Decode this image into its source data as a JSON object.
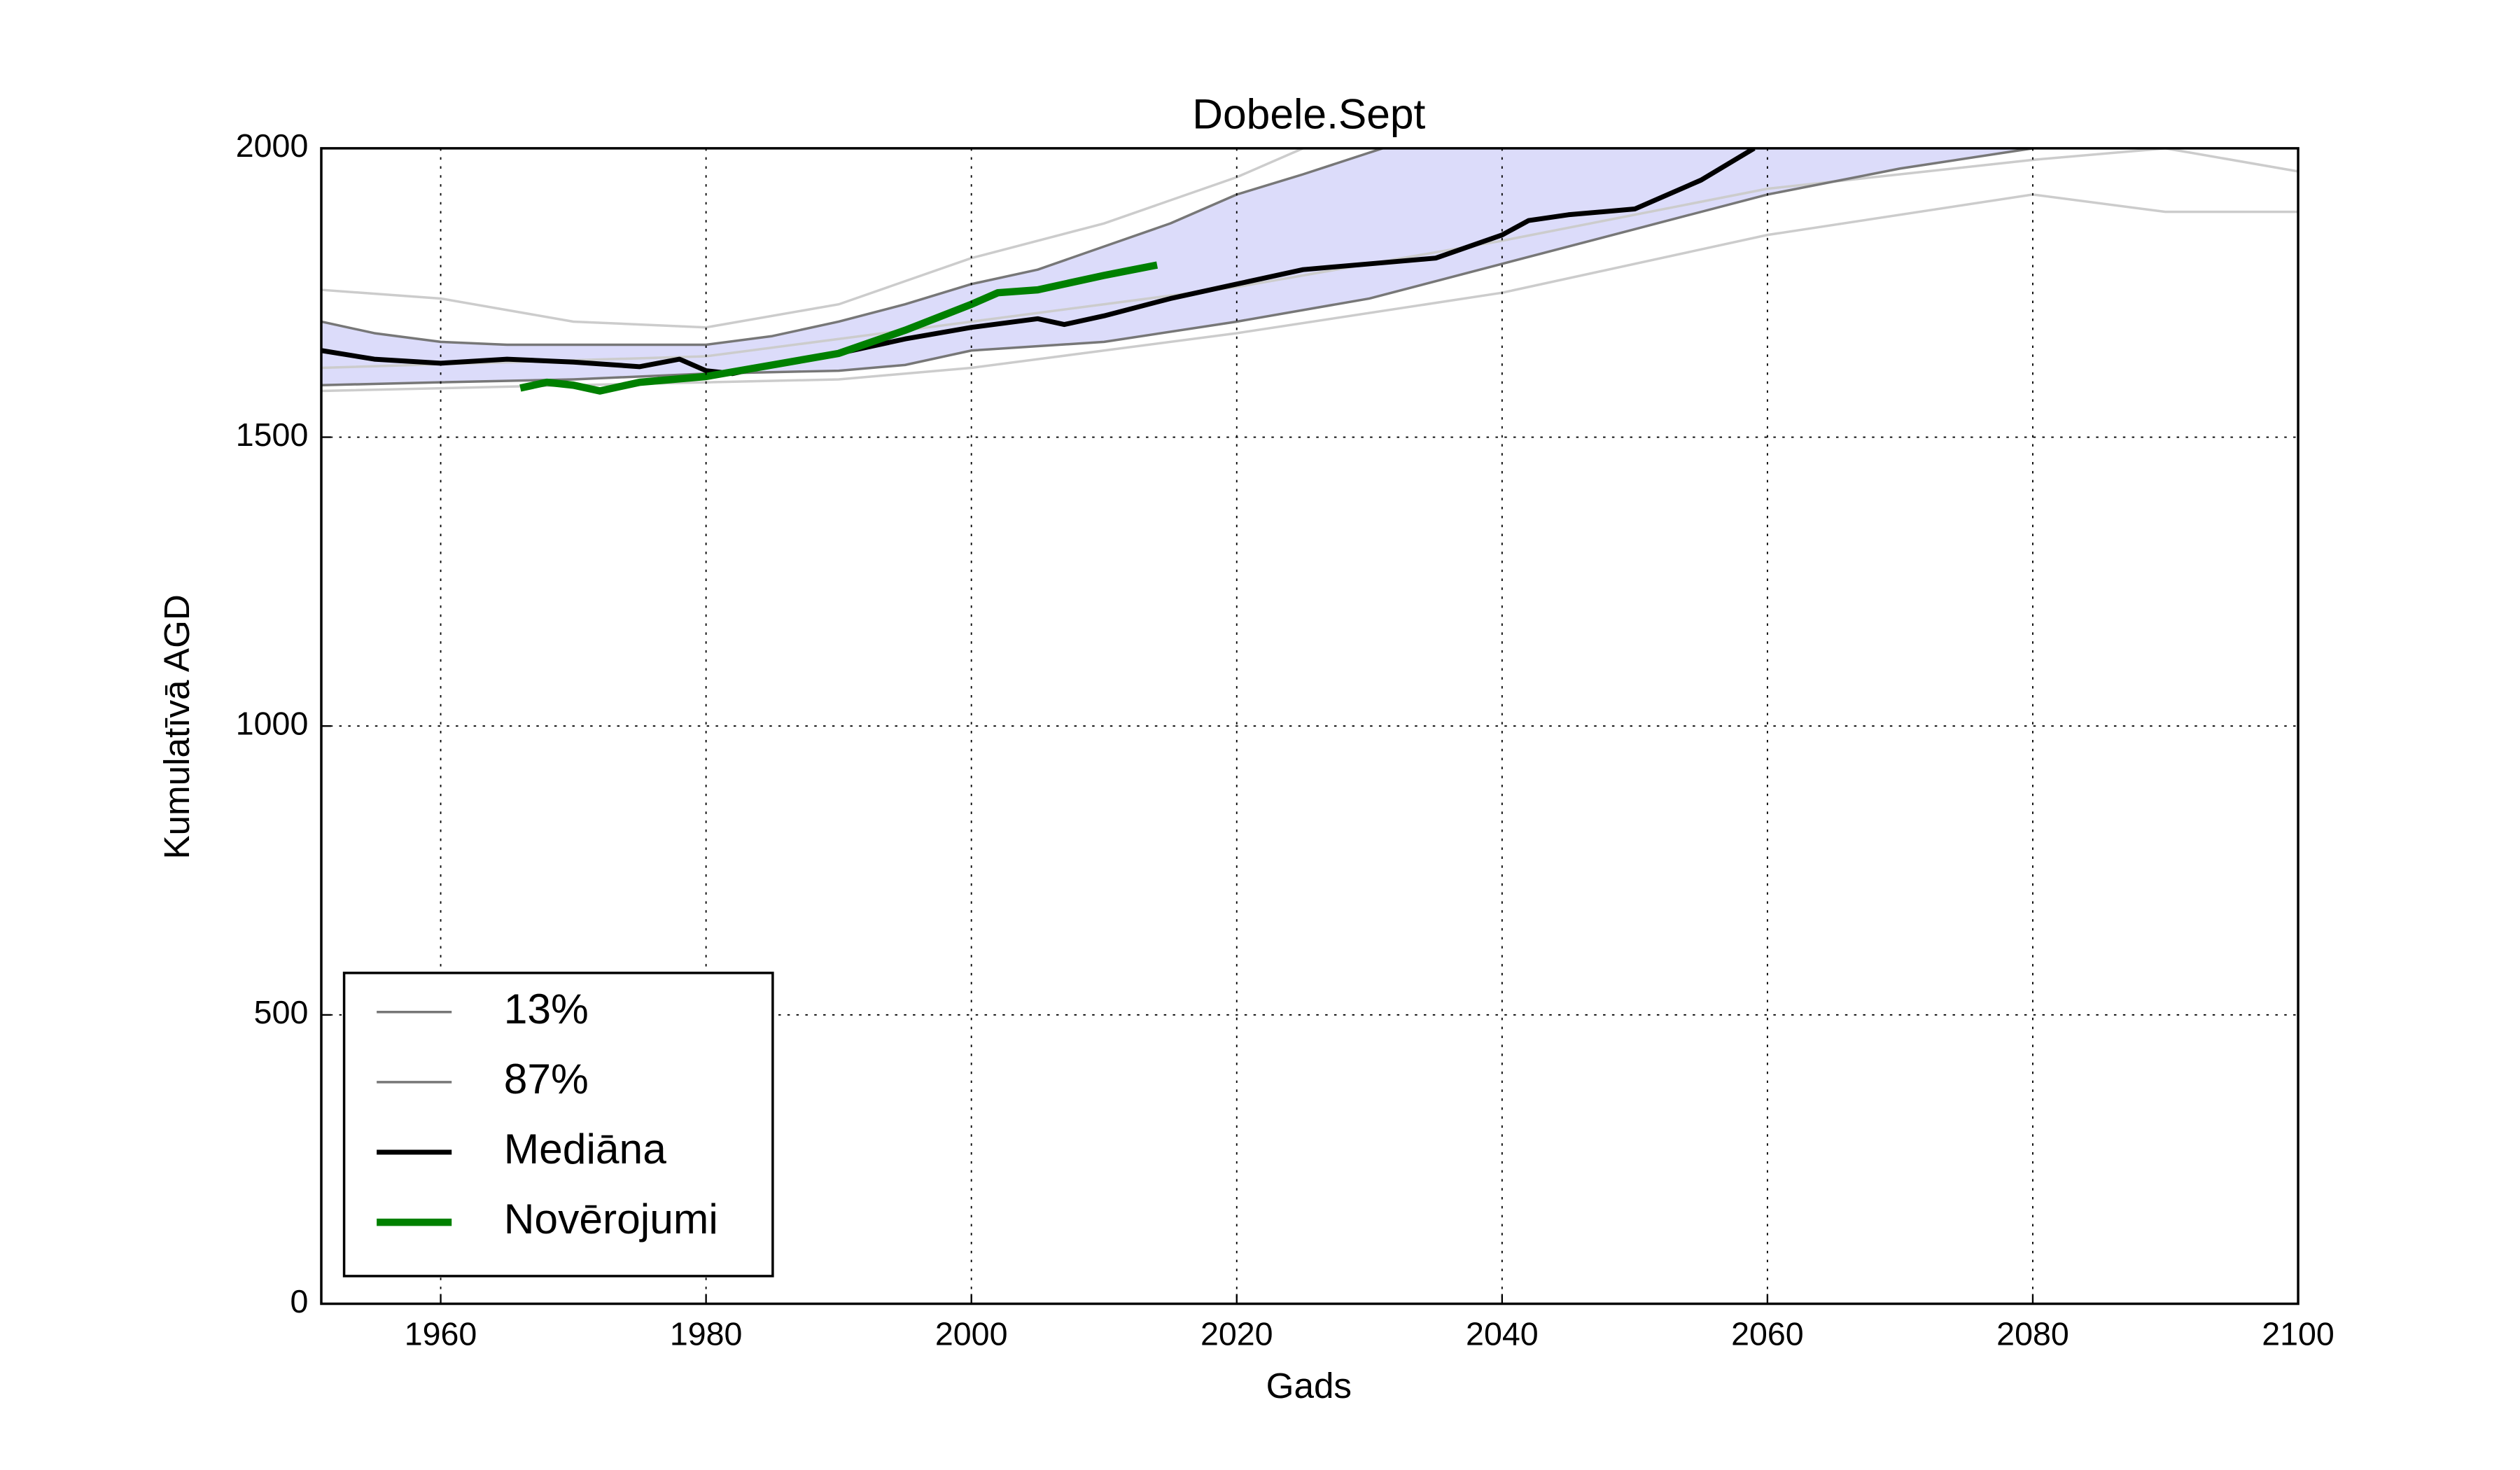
{
  "chart_data": {
    "type": "line",
    "title": "Dobele.Sept",
    "xlabel": "Gads",
    "ylabel": "Kumulatīvā AGD",
    "xlim": [
      1951,
      2100
    ],
    "ylim": [
      0,
      2000
    ],
    "xticks": [
      1960,
      1980,
      2000,
      2020,
      2040,
      2060,
      2080,
      2100
    ],
    "yticks": [
      0,
      500,
      1000,
      1500,
      2000
    ],
    "grid": true,
    "legend": "lower left",
    "band_color": "#d8d8fa",
    "members": [
      {
        "color": "#cccccc",
        "x": [
          1951,
          1960,
          1970,
          1980,
          1990,
          2000,
          2010,
          2020,
          2025
        ],
        "values": [
          1755,
          1740,
          1700,
          1690,
          1730,
          1810,
          1870,
          1950,
          2000
        ]
      },
      {
        "color": "#cccccc",
        "x": [
          1951,
          1970,
          1990,
          2000,
          2020,
          2040,
          2060,
          2080,
          2090,
          2100
        ],
        "values": [
          1580,
          1590,
          1600,
          1620,
          1680,
          1750,
          1850,
          1920,
          1890,
          1890
        ]
      },
      {
        "color": "#cccccc",
        "x": [
          1951,
          1980,
          2000,
          2020,
          2040,
          2060,
          2080,
          2090,
          2100
        ],
        "values": [
          1620,
          1640,
          1700,
          1760,
          1840,
          1930,
          1980,
          2000,
          1960
        ]
      }
    ],
    "series": [
      {
        "name": "13%",
        "color": "#777777",
        "width": 1.5,
        "x": [
          1951,
          1960,
          1970,
          1980,
          1990,
          1995,
          2000,
          2010,
          2020,
          2030,
          2040,
          2050,
          2060,
          2070,
          2080
        ],
        "values": [
          1590,
          1595,
          1600,
          1610,
          1615,
          1625,
          1650,
          1665,
          1700,
          1740,
          1800,
          1860,
          1920,
          1965,
          2000
        ]
      },
      {
        "name": "87%",
        "color": "#777777",
        "width": 1.5,
        "x": [
          1951,
          1955,
          1960,
          1965,
          1970,
          1975,
          1980,
          1985,
          1990,
          1995,
          2000,
          2005,
          2010,
          2015,
          2020,
          2025,
          2031
        ],
        "values": [
          1700,
          1680,
          1665,
          1660,
          1660,
          1660,
          1660,
          1675,
          1700,
          1730,
          1765,
          1790,
          1830,
          1870,
          1920,
          1955,
          2000
        ]
      },
      {
        "name": "Mediāna",
        "color": "#000000",
        "width": 3,
        "x": [
          1951,
          1955,
          1960,
          1965,
          1970,
          1975,
          1978,
          1980,
          1982,
          1985,
          1990,
          1995,
          2000,
          2005,
          2007,
          2010,
          2015,
          2020,
          2025,
          2030,
          2035,
          2040,
          2042,
          2045,
          2050,
          2055,
          2059
        ],
        "values": [
          1650,
          1635,
          1628,
          1635,
          1630,
          1622,
          1635,
          1615,
          1610,
          1625,
          1645,
          1670,
          1690,
          1705,
          1695,
          1710,
          1740,
          1765,
          1790,
          1800,
          1810,
          1850,
          1875,
          1885,
          1895,
          1945,
          2000
        ]
      },
      {
        "name": "Novērojumi",
        "color": "#008000",
        "width": 4.5,
        "x": [
          1966,
          1968,
          1970,
          1972,
          1975,
          1980,
          1985,
          1990,
          1995,
          2000,
          2002,
          2005,
          2010,
          2014
        ],
        "values": [
          1585,
          1595,
          1590,
          1580,
          1595,
          1605,
          1625,
          1645,
          1685,
          1730,
          1750,
          1755,
          1780,
          1798
        ]
      }
    ]
  }
}
